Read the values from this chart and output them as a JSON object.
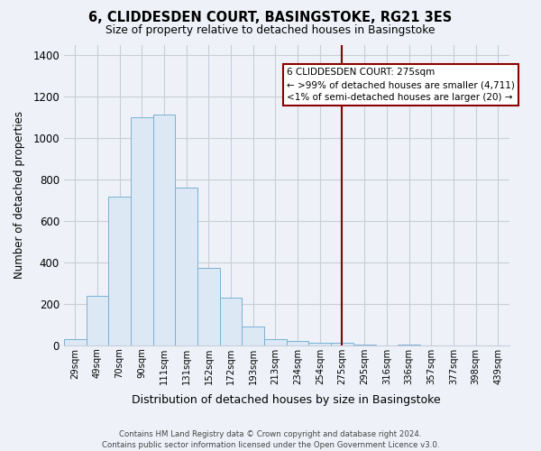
{
  "title": "6, CLIDDESDEN COURT, BASINGSTOKE, RG21 3ES",
  "subtitle": "Size of property relative to detached houses in Basingstoke",
  "xlabel": "Distribution of detached houses by size in Basingstoke",
  "ylabel": "Number of detached properties",
  "bar_labels": [
    "29sqm",
    "49sqm",
    "70sqm",
    "90sqm",
    "111sqm",
    "131sqm",
    "152sqm",
    "172sqm",
    "193sqm",
    "213sqm",
    "234sqm",
    "254sqm",
    "275sqm",
    "295sqm",
    "316sqm",
    "336sqm",
    "357sqm",
    "377sqm",
    "398sqm",
    "439sqm"
  ],
  "bar_values": [
    30,
    240,
    720,
    1100,
    1115,
    760,
    375,
    228,
    90,
    30,
    20,
    10,
    10,
    5,
    0,
    5,
    0,
    0,
    0,
    0
  ],
  "bar_color": "#dce9f5",
  "bar_edge_color": "#7ab0d4",
  "vline_color": "#8b0000",
  "vline_x_index": 12,
  "annotation_title": "6 CLIDDESDEN COURT: 275sqm",
  "annotation_line1": "← >99% of detached houses are smaller (4,711)",
  "annotation_line2": "<1% of semi-detached houses are larger (20) →",
  "ylim": [
    0,
    1450
  ],
  "yticks": [
    0,
    200,
    400,
    600,
    800,
    1000,
    1200,
    1400
  ],
  "footer_line1": "Contains HM Land Registry data © Crown copyright and database right 2024.",
  "footer_line2": "Contains public sector information licensed under the Open Government Licence v3.0.",
  "background_color": "#eef2f8",
  "plot_bg_color": "#eef2f8",
  "grid_color": "#c8cdd8"
}
